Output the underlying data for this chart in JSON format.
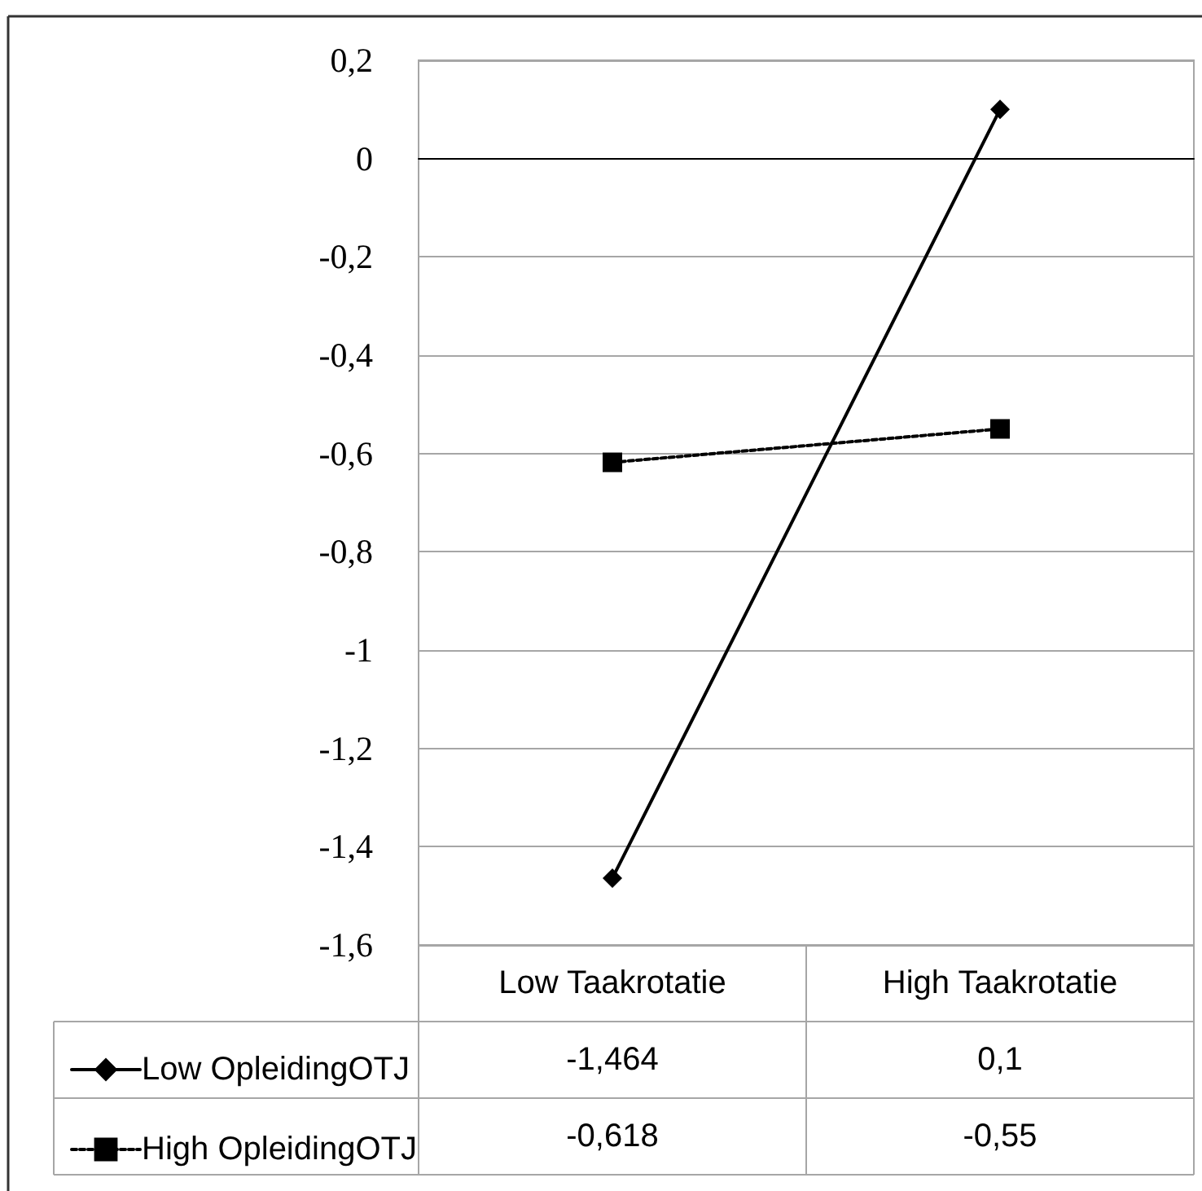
{
  "chart_data": {
    "type": "line",
    "categories": [
      "Low Taakrotatie",
      "High Taakrotatie"
    ],
    "series": [
      {
        "name": "Low OpleidingOTJ",
        "color": "#000000",
        "values": [
          -1.464,
          0.1
        ],
        "value_labels": [
          "-1,464",
          "0,1"
        ],
        "marker": "diamond",
        "line_style": "solid"
      },
      {
        "name": "High OpleidingOTJ",
        "color": "#000000",
        "values": [
          -0.618,
          -0.55
        ],
        "value_labels": [
          "-0,618",
          "-0,55"
        ],
        "marker": "square",
        "line_style": "dotted"
      }
    ],
    "ylim": [
      -1.6,
      0.2
    ],
    "yticks": [
      {
        "value": -1.6,
        "label": "-1,6"
      },
      {
        "value": -1.4,
        "label": "-1,4"
      },
      {
        "value": -1.2,
        "label": "-1,2"
      },
      -1,
      {
        "value": -0.8,
        "label": "-0,8"
      },
      {
        "value": -0.6,
        "label": "-0,6"
      },
      {
        "value": -0.4,
        "label": "-0,4"
      },
      {
        "value": -0.2,
        "label": "-0,2"
      },
      0,
      {
        "value": 0.2,
        "label": "0,2"
      }
    ],
    "grid": "y",
    "legend": "bottom"
  }
}
